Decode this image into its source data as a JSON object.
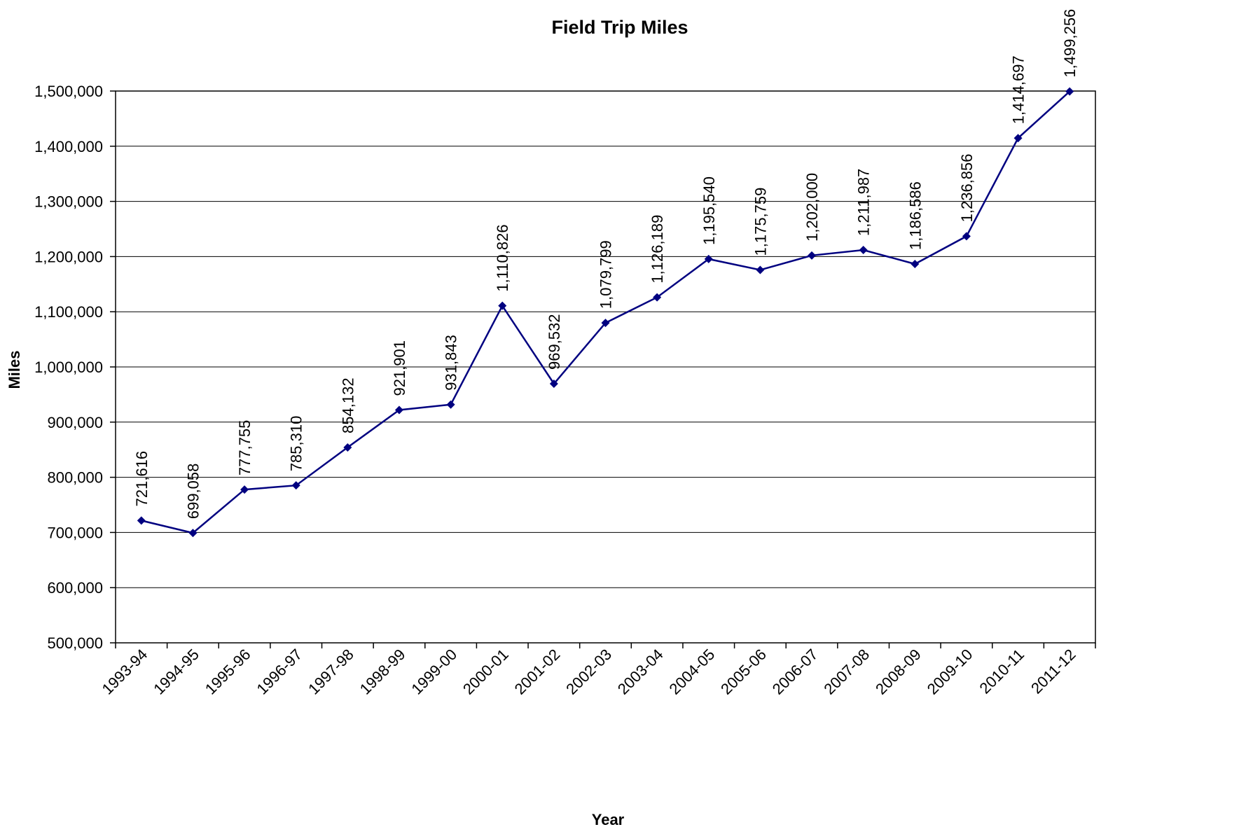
{
  "chart_data": {
    "type": "line",
    "title": "Field Trip Miles",
    "xlabel": "Year",
    "ylabel": "Miles",
    "ylim": [
      500000,
      1500000
    ],
    "ytick_step": 100000,
    "yticks": [
      "500,000",
      "600,000",
      "700,000",
      "800,000",
      "900,000",
      "1,000,000",
      "1,100,000",
      "1,200,000",
      "1,300,000",
      "1,400,000",
      "1,500,000"
    ],
    "grid": true,
    "legend": "none",
    "categories": [
      "1993-94",
      "1994-95",
      "1995-96",
      "1996-97",
      "1997-98",
      "1998-99",
      "1999-00",
      "2000-01",
      "2001-02",
      "2002-03",
      "2003-04",
      "2004-05",
      "2005-06",
      "2006-07",
      "2007-08",
      "2008-09",
      "2009-10",
      "2010-11",
      "2011-12"
    ],
    "series": [
      {
        "color": "#000080",
        "marker": "diamond",
        "values": [
          721616,
          699058,
          777755,
          785310,
          854132,
          921901,
          931843,
          1110826,
          969532,
          1079799,
          1126189,
          1195540,
          1175759,
          1202000,
          1211987,
          1186586,
          1236856,
          1414697,
          1499256
        ],
        "labels": [
          "721,616",
          "699,058",
          "777,755",
          "785,310",
          "854,132",
          "921,901",
          "931,843",
          "1,110,826",
          "969,532",
          "1,079,799",
          "1,126,189",
          "1,195,540",
          "1,175,759",
          "1,202,000",
          "1,211,987",
          "1,186,586",
          "1,236,856",
          "1,414,697",
          "1,499,256"
        ]
      }
    ]
  }
}
